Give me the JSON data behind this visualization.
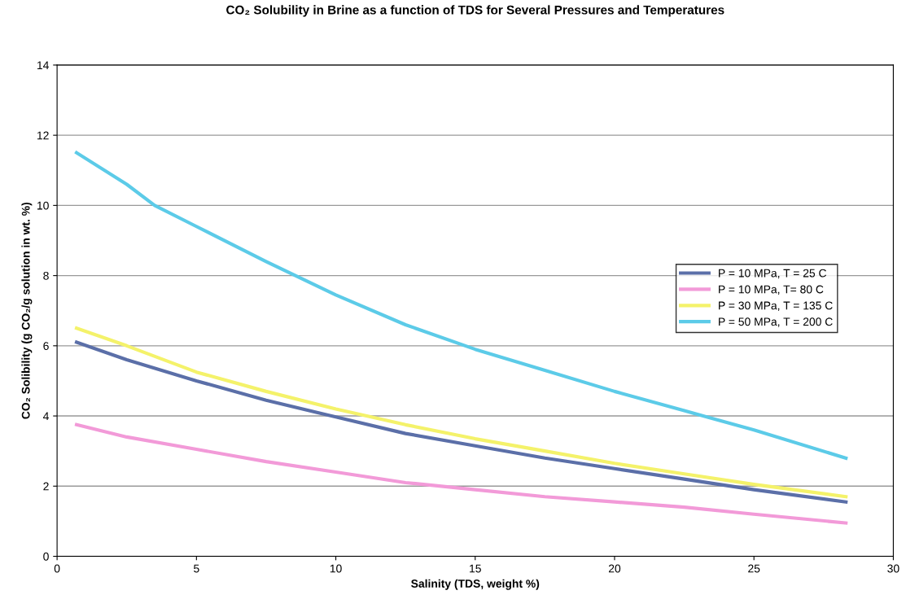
{
  "chart_data": {
    "type": "line",
    "title": "CO₂ Solubility in Brine as a function of TDS for Several Pressures and Temperatures",
    "xlabel": "Salinity (TDS, weight %)",
    "ylabel": "CO₂ Solibility (g CO₂/g solution in wt. %)",
    "xlim": [
      0,
      30
    ],
    "xticks": [
      0,
      5,
      10,
      15,
      20,
      25,
      30
    ],
    "ylim": [
      0,
      14
    ],
    "yticks": [
      0,
      2,
      4,
      6,
      8,
      10,
      12,
      14
    ],
    "grid": "y",
    "legend": "center right",
    "marker": "none",
    "line_style": "solid",
    "series": [
      {
        "name": "P = 10 MPa, T = 25 C",
        "color": "#5b6fa8",
        "x": [
          0.7,
          2.5,
          5,
          7.5,
          10,
          12.5,
          15,
          17.5,
          20,
          22.5,
          25,
          28.3
        ],
        "values": [
          6.1,
          5.6,
          5.0,
          4.45,
          3.97,
          3.5,
          3.15,
          2.8,
          2.5,
          2.2,
          1.9,
          1.55
        ]
      },
      {
        "name": "P = 10 MPa, T= 80 C",
        "color": "#f29ad8",
        "x": [
          0.7,
          2.5,
          5,
          7.5,
          10,
          12.5,
          15,
          17.5,
          20,
          22.5,
          25,
          28.3
        ],
        "values": [
          3.75,
          3.4,
          3.05,
          2.7,
          2.4,
          2.1,
          1.9,
          1.7,
          1.55,
          1.4,
          1.2,
          0.95
        ]
      },
      {
        "name": "P = 30 MPa, T = 135 C",
        "color": "#f4f26a",
        "x": [
          0.7,
          2.5,
          5,
          7.5,
          10,
          12.5,
          15,
          17.5,
          20,
          22.5,
          25,
          28.3
        ],
        "values": [
          6.5,
          6.0,
          5.25,
          4.7,
          4.2,
          3.75,
          3.35,
          3.0,
          2.65,
          2.35,
          2.05,
          1.7
        ]
      },
      {
        "name": "P = 50 MPa, T = 200 C",
        "color": "#5ccbe8",
        "x": [
          0.7,
          2.5,
          3.5,
          5,
          7.5,
          10,
          12.5,
          15,
          17.5,
          20,
          22.5,
          25,
          28.3
        ],
        "values": [
          11.5,
          10.6,
          10.0,
          9.4,
          8.4,
          7.45,
          6.6,
          5.9,
          5.3,
          4.7,
          4.15,
          3.6,
          2.8
        ]
      }
    ]
  }
}
